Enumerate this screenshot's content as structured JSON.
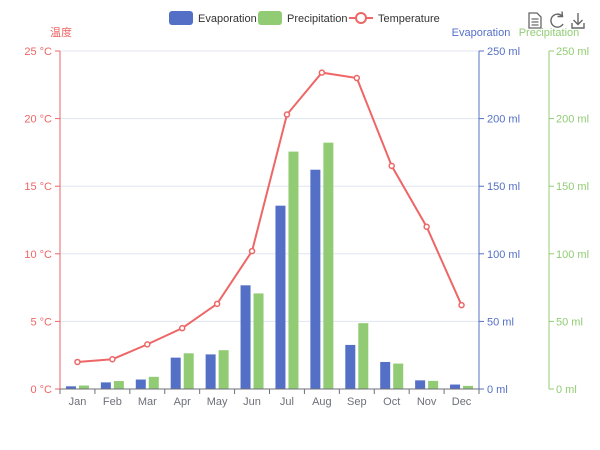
{
  "chart_data": {
    "type": "bar",
    "categories": [
      "Jan",
      "Feb",
      "Mar",
      "Apr",
      "May",
      "Jun",
      "Jul",
      "Aug",
      "Sep",
      "Oct",
      "Nov",
      "Dec"
    ],
    "series": [
      {
        "name": "Evaporation",
        "type": "bar",
        "axis": "evaporation",
        "color": "#5470c6",
        "values": [
          2.0,
          4.9,
          7.0,
          23.2,
          25.6,
          76.7,
          135.6,
          162.2,
          32.6,
          20.0,
          6.4,
          3.3
        ]
      },
      {
        "name": "Precipitation",
        "type": "bar",
        "axis": "precipitation",
        "color": "#91cc75",
        "values": [
          2.6,
          5.9,
          9.0,
          26.4,
          28.7,
          70.7,
          175.6,
          182.2,
          48.7,
          18.8,
          6.0,
          2.3
        ]
      },
      {
        "name": "Temperature",
        "type": "line",
        "axis": "temperature",
        "color": "#ee6666",
        "values": [
          2.0,
          2.2,
          3.3,
          4.5,
          6.3,
          10.2,
          20.3,
          23.4,
          23.0,
          16.5,
          12.0,
          6.2
        ]
      }
    ],
    "axes": {
      "temperature": {
        "name": "温度",
        "range": [
          0,
          25
        ],
        "ticks": [
          "0 °C",
          "5 °C",
          "10 °C",
          "15 °C",
          "20 °C",
          "25 °C"
        ],
        "color": "#ee6666",
        "position": "left"
      },
      "evaporation": {
        "name": "Evaporation",
        "range": [
          0,
          250
        ],
        "ticks": [
          "0 ml",
          "50 ml",
          "100 ml",
          "150 ml",
          "200 ml",
          "250 ml"
        ],
        "color": "#5470c6",
        "position": "right"
      },
      "precipitation": {
        "name": "Precipitation",
        "range": [
          0,
          250
        ],
        "ticks": [
          "0 ml",
          "50 ml",
          "100 ml",
          "150 ml",
          "200 ml",
          "250 ml"
        ],
        "color": "#91cc75",
        "position": "right-offset"
      }
    },
    "grid": true,
    "legend_position": "top-center"
  },
  "toolbox": {
    "items": [
      {
        "name": "data-view-icon"
      },
      {
        "name": "restore-icon"
      },
      {
        "name": "save-as-image-icon"
      }
    ]
  },
  "colors": {
    "grid_line": "#e0e6f1",
    "axis_text": "#6e7079",
    "toolbox_icon": "#666666"
  }
}
